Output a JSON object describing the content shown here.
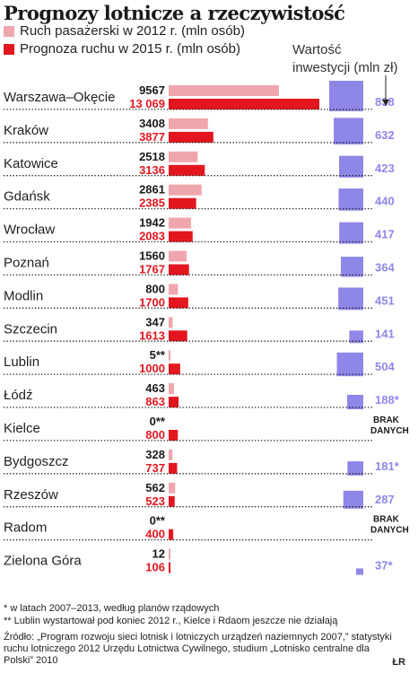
{
  "title": "Prognozy lotnicze a rzeczywistość",
  "legend": {
    "traffic_2012": "Ruch pasażerski w 2012 r. (mln osób)",
    "forecast_2015": "Prognoza ruchu w 2015 r. (mln osób)",
    "investment_line1": "Wartość",
    "investment_line2": "inwestycji (mln zł)"
  },
  "colors": {
    "traffic_2012": "#f0a6ad",
    "forecast_2015": "#e3161f",
    "investment": "#8f87e8",
    "investment_text": "#8f87e8"
  },
  "chart_data": {
    "type": "bar",
    "categories": [
      "Warszawa–Okęcie",
      "Kraków",
      "Katowice",
      "Gdańsk",
      "Wrocław",
      "Poznań",
      "Modlin",
      "Szczecin",
      "Lublin",
      "Łódź",
      "Kielce",
      "Bydgoszcz",
      "Rzeszów",
      "Radom",
      "Zielona Góra"
    ],
    "series": [
      {
        "name": "Ruch pasażerski w 2012 r. (mln osób)",
        "values": [
          9567,
          3408,
          2518,
          2861,
          1942,
          1560,
          800,
          347,
          5,
          463,
          0,
          328,
          562,
          0,
          12
        ],
        "labels": [
          "9567",
          "3408",
          "2518",
          "2861",
          "1942",
          "1560",
          "800",
          "347",
          "5**",
          "463",
          "0**",
          "328",
          "562",
          "0**",
          "12"
        ]
      },
      {
        "name": "Prognoza ruchu w 2015 r. (mln osób)",
        "values": [
          13069,
          3877,
          3136,
          2385,
          2083,
          1767,
          1700,
          1613,
          1000,
          863,
          800,
          737,
          523,
          400,
          106
        ],
        "labels": [
          "13 069",
          "3877",
          "3136",
          "2385",
          "2083",
          "1767",
          "1700",
          "1613",
          "1000",
          "863",
          "800",
          "737",
          "523",
          "400",
          "106"
        ]
      },
      {
        "name": "Wartość inwestycji (mln zł)",
        "values": [
          838,
          632,
          423,
          440,
          417,
          364,
          451,
          141,
          504,
          188,
          null,
          181,
          287,
          null,
          37
        ],
        "labels": [
          "838",
          "632",
          "423",
          "440",
          "417",
          "364",
          "451",
          "141",
          "504",
          "188*",
          "BRAK DANYCH",
          "181*",
          "287",
          "BRAK DANYCH",
          "37*"
        ]
      }
    ]
  },
  "footnotes": {
    "note1": "* w latach 2007–2013, według planów rządowych",
    "note2": "** Lublin wystartował pod koniec 2012 r., Kielce i Rdaom jeszcze nie działają"
  },
  "source": "Źródło: „Program rozwoju sieci lotnisk i lotniczych urządzeń naziemnych 2007,” statystyki ruchu lotniczego 2012 Urzędu Lotnictwa Cywilnego, studium „Lotnisko centralne dla Polski” 2010",
  "credit": "ŁR"
}
